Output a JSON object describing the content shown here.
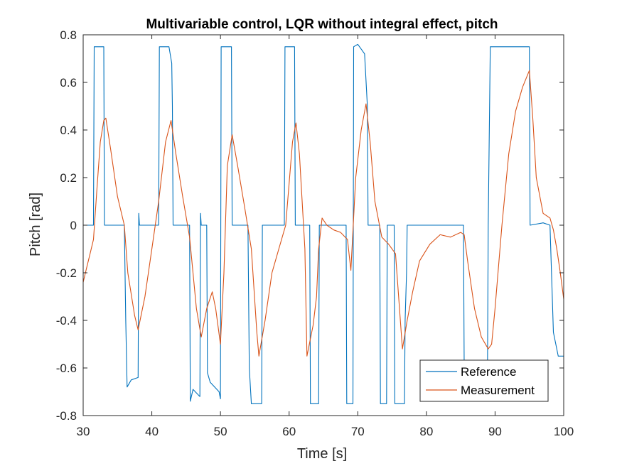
{
  "chart_data": {
    "type": "line",
    "title": "Multivariable control, LQR without integral effect, pitch",
    "xlabel": "Time [s]",
    "ylabel": "Pitch [rad]",
    "xlim": [
      30,
      100
    ],
    "ylim": [
      -0.8,
      0.8
    ],
    "xticks": [
      30,
      40,
      50,
      60,
      70,
      80,
      90,
      100
    ],
    "yticks": [
      -0.8,
      -0.6,
      -0.4,
      -0.2,
      0,
      0.2,
      0.4,
      0.6,
      0.8
    ],
    "xtick_labels": [
      "30",
      "40",
      "50",
      "60",
      "70",
      "80",
      "90",
      "100"
    ],
    "ytick_labels": [
      "-0.8",
      "-0.6",
      "-0.4",
      "-0.2",
      "0",
      "0.2",
      "0.4",
      "0.6",
      "0.8"
    ],
    "grid": false,
    "legend_position": "bottom-right",
    "series": [
      {
        "name": "Reference",
        "color": "#0072BD",
        "points": [
          [
            30,
            0
          ],
          [
            31.5,
            0
          ],
          [
            31.6,
            0.75
          ],
          [
            33,
            0.75
          ],
          [
            33.1,
            0
          ],
          [
            36,
            0
          ],
          [
            36.2,
            -0.4
          ],
          [
            36.4,
            -0.68
          ],
          [
            37,
            -0.65
          ],
          [
            38,
            -0.64
          ],
          [
            38.1,
            0.05
          ],
          [
            38.2,
            0
          ],
          [
            41,
            0
          ],
          [
            41.1,
            0.75
          ],
          [
            42.5,
            0.75
          ],
          [
            42.9,
            0.68
          ],
          [
            43,
            0.5
          ],
          [
            43.1,
            0
          ],
          [
            45.5,
            0
          ],
          [
            45.6,
            -0.74
          ],
          [
            46,
            -0.69
          ],
          [
            47,
            -0.72
          ],
          [
            47.1,
            0.05
          ],
          [
            47.2,
            0
          ],
          [
            48,
            0
          ],
          [
            48.1,
            -0.62
          ],
          [
            48.5,
            -0.66
          ],
          [
            49.8,
            -0.7
          ],
          [
            50,
            -0.73
          ],
          [
            50.1,
            0.75
          ],
          [
            51.6,
            0.75
          ],
          [
            51.7,
            0
          ],
          [
            54,
            0
          ],
          [
            54.2,
            -0.6
          ],
          [
            54.5,
            -0.75
          ],
          [
            56,
            -0.75
          ],
          [
            56.1,
            0
          ],
          [
            59.3,
            0
          ],
          [
            59.4,
            0.75
          ],
          [
            60.8,
            0.75
          ],
          [
            60.9,
            0
          ],
          [
            63,
            0
          ],
          [
            63.1,
            -0.75
          ],
          [
            64.3,
            -0.75
          ],
          [
            64.4,
            0
          ],
          [
            68.3,
            0
          ],
          [
            68.4,
            -0.75
          ],
          [
            69.3,
            -0.75
          ],
          [
            69.4,
            0.75
          ],
          [
            70,
            0.76
          ],
          [
            70.5,
            0.74
          ],
          [
            71,
            0.72
          ],
          [
            71.4,
            0.5
          ],
          [
            71.5,
            0
          ],
          [
            73.2,
            0
          ],
          [
            73.3,
            -0.75
          ],
          [
            74.2,
            -0.75
          ],
          [
            74.3,
            0
          ],
          [
            75.3,
            0
          ],
          [
            75.4,
            -0.75
          ],
          [
            76.8,
            -0.75
          ],
          [
            76.9,
            -0.4
          ],
          [
            77.1,
            -0.2
          ],
          [
            77.2,
            0
          ],
          [
            85.4,
            0
          ],
          [
            85.5,
            -0.6
          ],
          [
            88.9,
            -0.6
          ],
          [
            89,
            0
          ],
          [
            89.3,
            0.75
          ],
          [
            95,
            0.75
          ],
          [
            95.1,
            0
          ],
          [
            97,
            0.01
          ],
          [
            98,
            0
          ],
          [
            98.5,
            -0.45
          ],
          [
            99.2,
            -0.55
          ],
          [
            100,
            -0.55
          ]
        ]
      },
      {
        "name": "Measurement",
        "color": "#D95319",
        "points": [
          [
            30,
            -0.24
          ],
          [
            30.5,
            -0.18
          ],
          [
            31,
            -0.12
          ],
          [
            31.5,
            -0.06
          ],
          [
            32,
            0.15
          ],
          [
            32.5,
            0.35
          ],
          [
            33,
            0.44
          ],
          [
            33.3,
            0.45
          ],
          [
            34,
            0.32
          ],
          [
            35,
            0.12
          ],
          [
            36,
            0
          ],
          [
            36.5,
            -0.2
          ],
          [
            37.5,
            -0.38
          ],
          [
            38,
            -0.44
          ],
          [
            39,
            -0.3
          ],
          [
            40,
            -0.1
          ],
          [
            41,
            0.1
          ],
          [
            42,
            0.35
          ],
          [
            42.8,
            0.44
          ],
          [
            43.5,
            0.3
          ],
          [
            44.5,
            0.12
          ],
          [
            45.5,
            -0.05
          ],
          [
            46.5,
            -0.35
          ],
          [
            47.2,
            -0.47
          ],
          [
            48,
            -0.35
          ],
          [
            48.8,
            -0.28
          ],
          [
            49.3,
            -0.35
          ],
          [
            50,
            -0.5
          ],
          [
            50.5,
            -0.2
          ],
          [
            51,
            0.25
          ],
          [
            51.7,
            0.38
          ],
          [
            52.5,
            0.25
          ],
          [
            53.5,
            0.08
          ],
          [
            54.5,
            -0.1
          ],
          [
            55.3,
            -0.45
          ],
          [
            55.6,
            -0.55
          ],
          [
            56.5,
            -0.4
          ],
          [
            57.5,
            -0.2
          ],
          [
            58.5,
            -0.1
          ],
          [
            59.5,
            0
          ],
          [
            60.5,
            0.35
          ],
          [
            61,
            0.43
          ],
          [
            61.5,
            0.3
          ],
          [
            62.3,
            -0.1
          ],
          [
            62.6,
            -0.55
          ],
          [
            63.5,
            -0.42
          ],
          [
            64,
            -0.3
          ],
          [
            64.3,
            -0.1
          ],
          [
            64.8,
            0.03
          ],
          [
            65.5,
            0
          ],
          [
            66.5,
            -0.02
          ],
          [
            67.5,
            -0.03
          ],
          [
            68.5,
            -0.06
          ],
          [
            69,
            -0.19
          ],
          [
            69.7,
            0.2
          ],
          [
            70.5,
            0.4
          ],
          [
            71.2,
            0.51
          ],
          [
            71.8,
            0.35
          ],
          [
            72.5,
            0.1
          ],
          [
            73.5,
            -0.05
          ],
          [
            74.5,
            -0.08
          ],
          [
            75.5,
            -0.12
          ],
          [
            76.5,
            -0.52
          ],
          [
            77.2,
            -0.4
          ],
          [
            78,
            -0.28
          ],
          [
            79,
            -0.15
          ],
          [
            80.5,
            -0.08
          ],
          [
            82,
            -0.04
          ],
          [
            83.5,
            -0.05
          ],
          [
            85,
            -0.03
          ],
          [
            85.5,
            -0.04
          ],
          [
            86,
            -0.15
          ],
          [
            87,
            -0.35
          ],
          [
            88,
            -0.47
          ],
          [
            89,
            -0.52
          ],
          [
            89.5,
            -0.5
          ],
          [
            90,
            -0.35
          ],
          [
            91,
            0
          ],
          [
            92,
            0.3
          ],
          [
            93,
            0.48
          ],
          [
            94,
            0.58
          ],
          [
            95,
            0.65
          ],
          [
            95.5,
            0.45
          ],
          [
            96,
            0.2
          ],
          [
            97,
            0.05
          ],
          [
            98,
            0.03
          ],
          [
            98.5,
            -0.02
          ],
          [
            99,
            -0.1
          ],
          [
            99.5,
            -0.2
          ],
          [
            100,
            -0.31
          ]
        ]
      }
    ]
  }
}
